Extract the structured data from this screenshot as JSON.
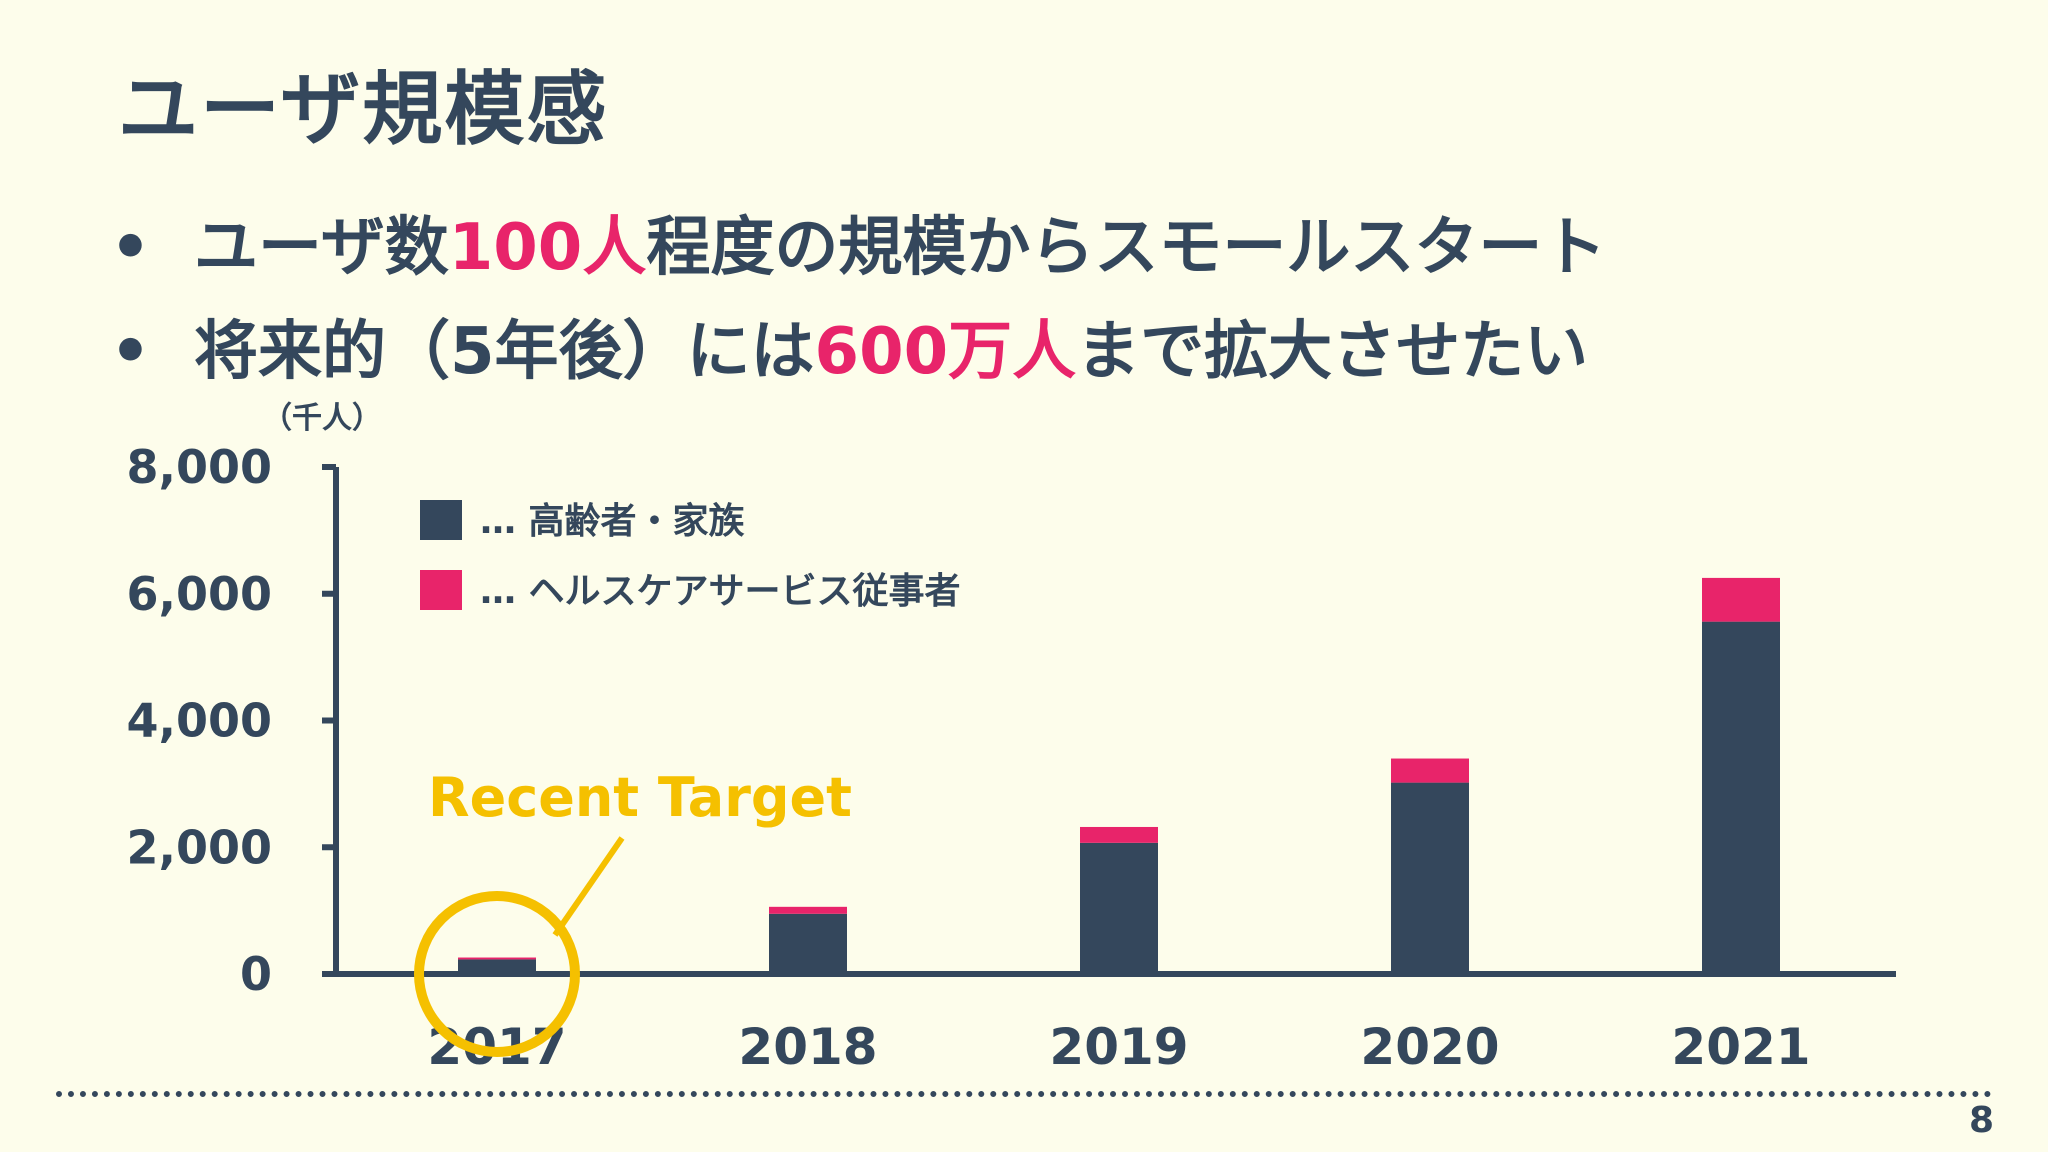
{
  "slide": {
    "title": "ユーザ規模感",
    "page_number": "8"
  },
  "bullets": [
    {
      "pre": "ユーザ数",
      "highlight": "100人",
      "post": "程度の規模からスモールスタート"
    },
    {
      "pre": "将来的（5年後）には",
      "highlight": "600万人",
      "post": "まで拡大させたい"
    }
  ],
  "colors": {
    "dark": "#34475c",
    "accent": "#e8246a",
    "target": "#f5c000",
    "background": "#fdfdeb"
  },
  "chart_data": {
    "type": "bar",
    "stacked": true,
    "unit_label": "（千人）",
    "categories": [
      "2017",
      "2018",
      "2019",
      "2020",
      "2021"
    ],
    "series": [
      {
        "name": "… 高齢者・家族",
        "color": "#34475c",
        "values": [
          230,
          950,
          2070,
          3020,
          5560
        ]
      },
      {
        "name": "… ヘルスケアサービス従事者",
        "color": "#e8246a",
        "values": [
          30,
          110,
          250,
          380,
          690
        ]
      }
    ],
    "ylim": [
      0,
      8000
    ],
    "yticks": [
      0,
      2000,
      4000,
      6000,
      8000
    ],
    "ytick_labels": [
      "0",
      "2,000",
      "4,000",
      "6,000",
      "8,000"
    ],
    "legend_position": "top-left",
    "annotation": {
      "text": "Recent Target",
      "category": "2017"
    }
  }
}
